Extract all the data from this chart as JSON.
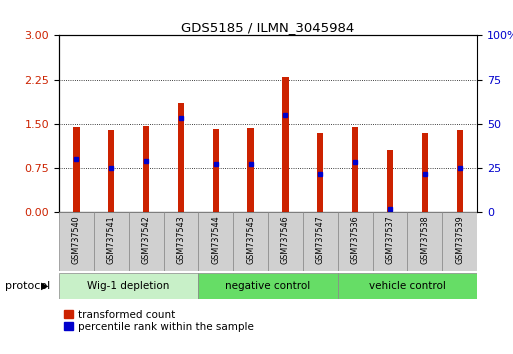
{
  "title": "GDS5185 / ILMN_3045984",
  "samples": [
    "GSM737540",
    "GSM737541",
    "GSM737542",
    "GSM737543",
    "GSM737544",
    "GSM737545",
    "GSM737546",
    "GSM737547",
    "GSM737536",
    "GSM737537",
    "GSM737538",
    "GSM737539"
  ],
  "red_values": [
    1.45,
    1.4,
    1.46,
    1.85,
    1.42,
    1.43,
    2.3,
    1.35,
    1.45,
    1.05,
    1.35,
    1.4
  ],
  "blue_values": [
    0.9,
    0.75,
    0.87,
    1.6,
    0.82,
    0.82,
    1.65,
    0.65,
    0.85,
    0.05,
    0.65,
    0.75
  ],
  "groups": [
    {
      "label": "Wig-1 depletion",
      "start": 0,
      "end": 4,
      "color": "#c8f0c8"
    },
    {
      "label": "negative control",
      "start": 4,
      "end": 8,
      "color": "#66dd66"
    },
    {
      "label": "vehicle control",
      "start": 8,
      "end": 12,
      "color": "#66dd66"
    }
  ],
  "bar_color": "#cc2200",
  "dot_color": "#0000cc",
  "ylim_left": [
    0,
    3
  ],
  "ylim_right": [
    0,
    100
  ],
  "yticks_left": [
    0,
    0.75,
    1.5,
    2.25,
    3
  ],
  "yticks_right": [
    0,
    25,
    50,
    75,
    100
  ],
  "ylabel_left_color": "#cc2200",
  "ylabel_right_color": "#0000cc",
  "background_color": "#ffffff",
  "plot_bg_color": "#ffffff",
  "sample_box_color": "#d0d0d0",
  "protocol_label": "protocol"
}
